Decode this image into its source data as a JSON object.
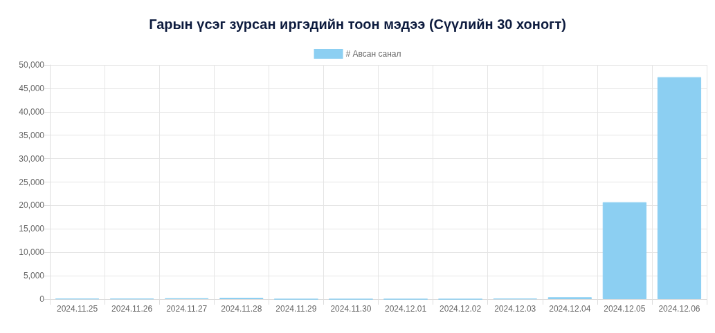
{
  "chart_data": {
    "type": "bar",
    "title": "Гарын үсэг зурсан иргэдийн тоон мэдээ (Сүүлийн 30 хоногт)",
    "categories": [
      "2024.11.25",
      "2024.11.26",
      "2024.11.27",
      "2024.11.28",
      "2024.11.29",
      "2024.11.30",
      "2024.12.01",
      "2024.12.02",
      "2024.12.03",
      "2024.12.04",
      "2024.12.05",
      "2024.12.06"
    ],
    "series": [
      {
        "name": "# Авсан санал",
        "color": "#8ccff2",
        "values": [
          100,
          100,
          200,
          300,
          0,
          0,
          0,
          0,
          100,
          400,
          20700,
          47400
        ]
      }
    ],
    "ylim": [
      0,
      50000
    ],
    "yticks": [
      0,
      {
        "value": 5000,
        "label": "5,000"
      },
      {
        "value": 10000,
        "label": "10,000"
      },
      {
        "value": 15000,
        "label": "15,000"
      },
      {
        "value": 20000,
        "label": "20,000"
      },
      {
        "value": 25000,
        "label": "25,000"
      },
      {
        "value": 30000,
        "label": "30,000"
      },
      {
        "value": 35000,
        "label": "35,000"
      },
      {
        "value": 40000,
        "label": "40,000"
      },
      {
        "value": 45000,
        "label": "45,000"
      },
      {
        "value": 50000,
        "label": "50,000"
      }
    ],
    "grid": true,
    "legend": "top"
  }
}
